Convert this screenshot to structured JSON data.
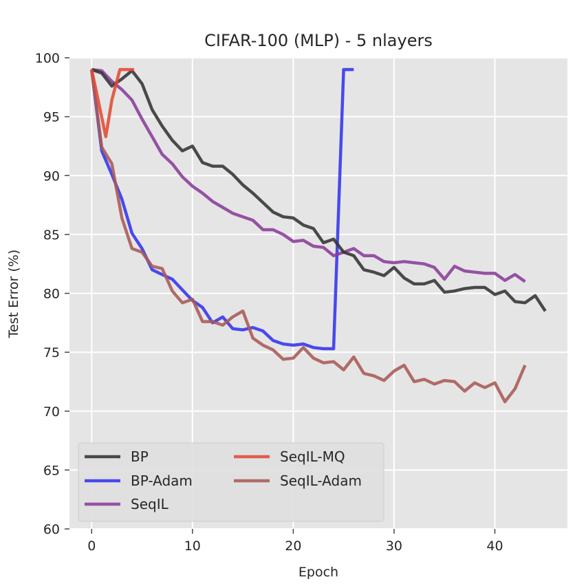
{
  "chart_data": {
    "type": "line",
    "title": "CIFAR-100 (MLP) - 5 nlayers",
    "xlabel": "Epoch",
    "ylabel": "Test Error (%)",
    "xlim": [
      -2.2,
      47.2
    ],
    "ylim": [
      60,
      100
    ],
    "xticks": [
      0,
      10,
      20,
      30,
      40
    ],
    "yticks": [
      60,
      65,
      70,
      75,
      80,
      85,
      90,
      95,
      100
    ],
    "grid": true,
    "legend": "lower-left",
    "colors": {
      "background": "#e5e5e5",
      "grid": "#ffffff",
      "BP": "#333333",
      "BP-Adam": "#3333ee",
      "SeqIL": "#8a3c9a",
      "SeqIL-MQ": "#e24a33",
      "SeqIL-Adam": "#a85a55"
    },
    "series": [
      {
        "name": "BP",
        "x": [
          0,
          1,
          2,
          3,
          4,
          5,
          6,
          7,
          8,
          9,
          10,
          11,
          12,
          13,
          14,
          15,
          16,
          17,
          18,
          19,
          20,
          21,
          22,
          23,
          24,
          25,
          26,
          27,
          28,
          29,
          30,
          31,
          32,
          33,
          34,
          35,
          36,
          37,
          38,
          39,
          40,
          41,
          42,
          43,
          44,
          45
        ],
        "values": [
          99.0,
          98.7,
          97.6,
          98.2,
          98.9,
          97.8,
          95.6,
          94.2,
          93.0,
          92.1,
          92.5,
          91.1,
          90.8,
          90.8,
          90.1,
          89.2,
          88.5,
          87.7,
          86.9,
          86.5,
          86.4,
          85.8,
          85.5,
          84.3,
          84.6,
          83.5,
          83.2,
          82.0,
          81.8,
          81.5,
          82.2,
          81.3,
          80.8,
          80.8,
          81.1,
          80.1,
          80.2,
          80.4,
          80.5,
          80.5,
          79.9,
          80.2,
          79.3,
          79.2,
          79.8,
          78.5
        ]
      },
      {
        "name": "BP-Adam",
        "x": [
          0,
          1,
          2,
          3,
          4,
          5,
          6,
          7,
          8,
          9,
          10,
          11,
          12,
          13,
          14,
          15,
          16,
          17,
          18,
          19,
          20,
          21,
          22,
          23,
          24,
          25,
          26
        ],
        "values": [
          99.0,
          92.1,
          90.1,
          88.0,
          85.1,
          83.8,
          82.0,
          81.6,
          81.2,
          80.3,
          79.4,
          78.8,
          77.5,
          78.0,
          77.0,
          76.9,
          77.1,
          76.8,
          76.0,
          75.7,
          75.6,
          75.7,
          75.4,
          75.3,
          75.3,
          99.0,
          99.0
        ]
      },
      {
        "name": "SeqIL",
        "x": [
          0,
          1,
          2,
          3,
          4,
          5,
          6,
          7,
          8,
          9,
          10,
          11,
          12,
          13,
          14,
          15,
          16,
          17,
          18,
          19,
          20,
          21,
          22,
          23,
          24,
          25,
          26,
          27,
          28,
          29,
          30,
          31,
          32,
          33,
          34,
          35,
          36,
          37,
          38,
          39,
          40,
          41,
          42,
          43
        ],
        "values": [
          99.0,
          98.9,
          98.0,
          97.3,
          96.4,
          94.8,
          93.3,
          91.8,
          91.0,
          89.9,
          89.1,
          88.5,
          87.8,
          87.3,
          86.8,
          86.5,
          86.2,
          85.4,
          85.4,
          85.0,
          84.4,
          84.5,
          84.0,
          83.9,
          83.2,
          83.5,
          83.8,
          83.2,
          83.2,
          82.7,
          82.6,
          82.7,
          82.6,
          82.5,
          82.2,
          81.2,
          82.3,
          81.9,
          81.8,
          81.7,
          81.7,
          81.1,
          81.6,
          81.0
        ]
      },
      {
        "name": "SeqIL-MQ",
        "x": [
          0,
          0.7,
          1.4,
          2,
          2.8,
          3.5,
          4.2
        ],
        "values": [
          99.0,
          96.2,
          93.3,
          96.4,
          99.0,
          99.0,
          99.0
        ]
      },
      {
        "name": "SeqIL-Adam",
        "x": [
          0,
          1,
          2,
          3,
          4,
          5,
          6,
          7,
          8,
          9,
          10,
          11,
          12,
          13,
          14,
          15,
          16,
          17,
          18,
          19,
          20,
          21,
          22,
          23,
          24,
          25,
          26,
          27,
          28,
          29,
          30,
          31,
          32,
          33,
          34,
          35,
          36,
          37,
          38,
          39,
          40,
          41,
          42,
          43,
          44
        ],
        "values": [
          99.0,
          92.4,
          91.0,
          86.4,
          83.8,
          83.5,
          82.3,
          82.1,
          80.2,
          79.2,
          79.5,
          77.6,
          77.6,
          77.3,
          78.0,
          78.5,
          76.2,
          75.6,
          75.2,
          74.4,
          74.5,
          75.4,
          74.5,
          74.1,
          74.2,
          73.5,
          74.6,
          73.2,
          73.0,
          72.6,
          73.4,
          73.9,
          72.5,
          72.7,
          72.3,
          72.6,
          72.5,
          71.7,
          72.4,
          72.0,
          72.4,
          70.8,
          71.9,
          73.9,
          null
        ]
      }
    ],
    "legend_entries": [
      "BP",
      "SeqIL-MQ",
      "BP-Adam",
      "SeqIL-Adam",
      "SeqIL"
    ]
  }
}
